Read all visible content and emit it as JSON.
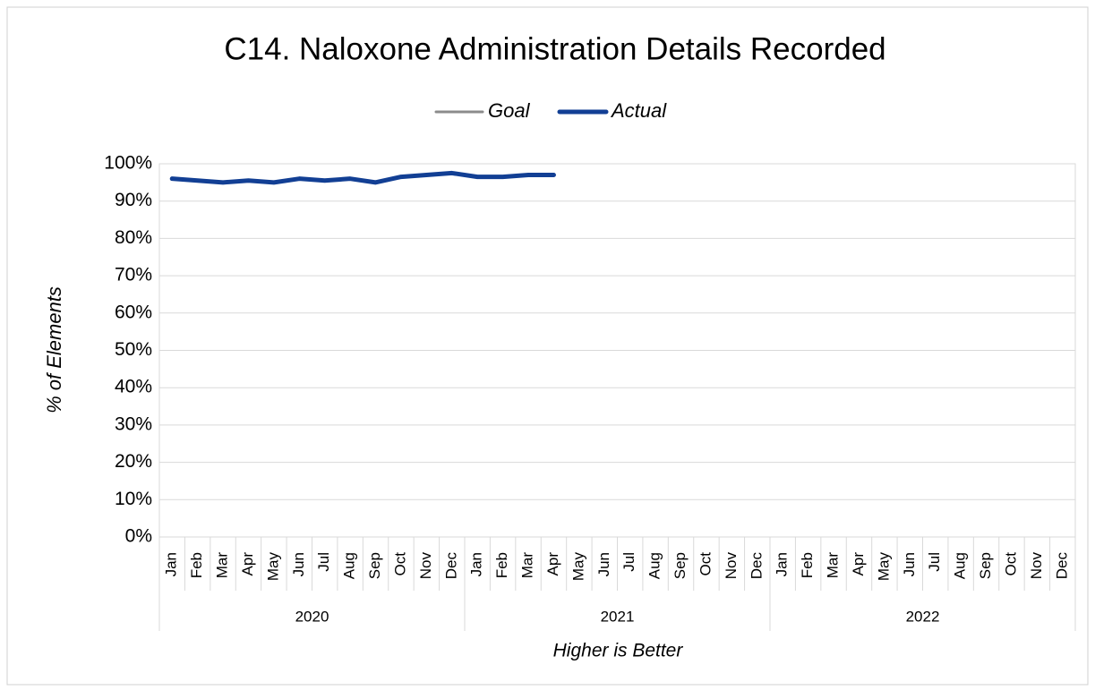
{
  "chart_data": {
    "type": "line",
    "title": "C14. Naloxone Administration Details Recorded",
    "y_label": "% of Elements",
    "x_label": "Higher is Better",
    "categories": [
      "Jan",
      "Feb",
      "Mar",
      "Apr",
      "May",
      "Jun",
      "Jul",
      "Aug",
      "Sep",
      "Oct",
      "Nov",
      "Dec",
      "Jan",
      "Feb",
      "Mar",
      "Apr",
      "May",
      "Jun",
      "Jul",
      "Aug",
      "Sep",
      "Oct",
      "Nov",
      "Dec",
      "Jan",
      "Feb",
      "Mar",
      "Apr",
      "May",
      "Jun",
      "Jul",
      "Aug",
      "Sep",
      "Oct",
      "Nov",
      "Dec"
    ],
    "category_groups": [
      "2020",
      "2021",
      "2022"
    ],
    "series": [
      {
        "name": "Goal",
        "color": "#8c8c8c",
        "values": [
          null,
          null,
          null,
          null,
          null,
          null,
          null,
          null,
          null,
          null,
          null,
          null,
          null,
          null,
          null,
          null,
          null,
          null,
          null,
          null,
          null,
          null,
          null,
          null,
          null,
          null,
          null,
          null,
          null,
          null,
          null,
          null,
          null,
          null,
          null,
          null
        ]
      },
      {
        "name": "Actual",
        "color": "#123f94",
        "values": [
          96,
          95.5,
          95,
          95.5,
          95,
          96,
          95.5,
          96,
          95,
          96.5,
          97,
          97.5,
          96.5,
          96.5,
          97,
          97,
          null,
          null,
          null,
          null,
          null,
          null,
          null,
          null,
          null,
          null,
          null,
          null,
          null,
          null,
          null,
          null,
          null,
          null,
          null,
          null
        ]
      }
    ],
    "ylim": [
      0,
      100
    ],
    "yticks": [
      {
        "value": 0,
        "label": "0%"
      },
      {
        "value": 10,
        "label": "10%"
      },
      {
        "value": 20,
        "label": "20%"
      },
      {
        "value": 30,
        "label": "30%"
      },
      {
        "value": 40,
        "label": "40%"
      },
      {
        "value": 50,
        "label": "50%"
      },
      {
        "value": 60,
        "label": "60%"
      },
      {
        "value": 70,
        "label": "70%"
      },
      {
        "value": 80,
        "label": "80%"
      },
      {
        "value": 90,
        "label": "90%"
      },
      {
        "value": 100,
        "label": "100%"
      }
    ],
    "grid": true
  }
}
